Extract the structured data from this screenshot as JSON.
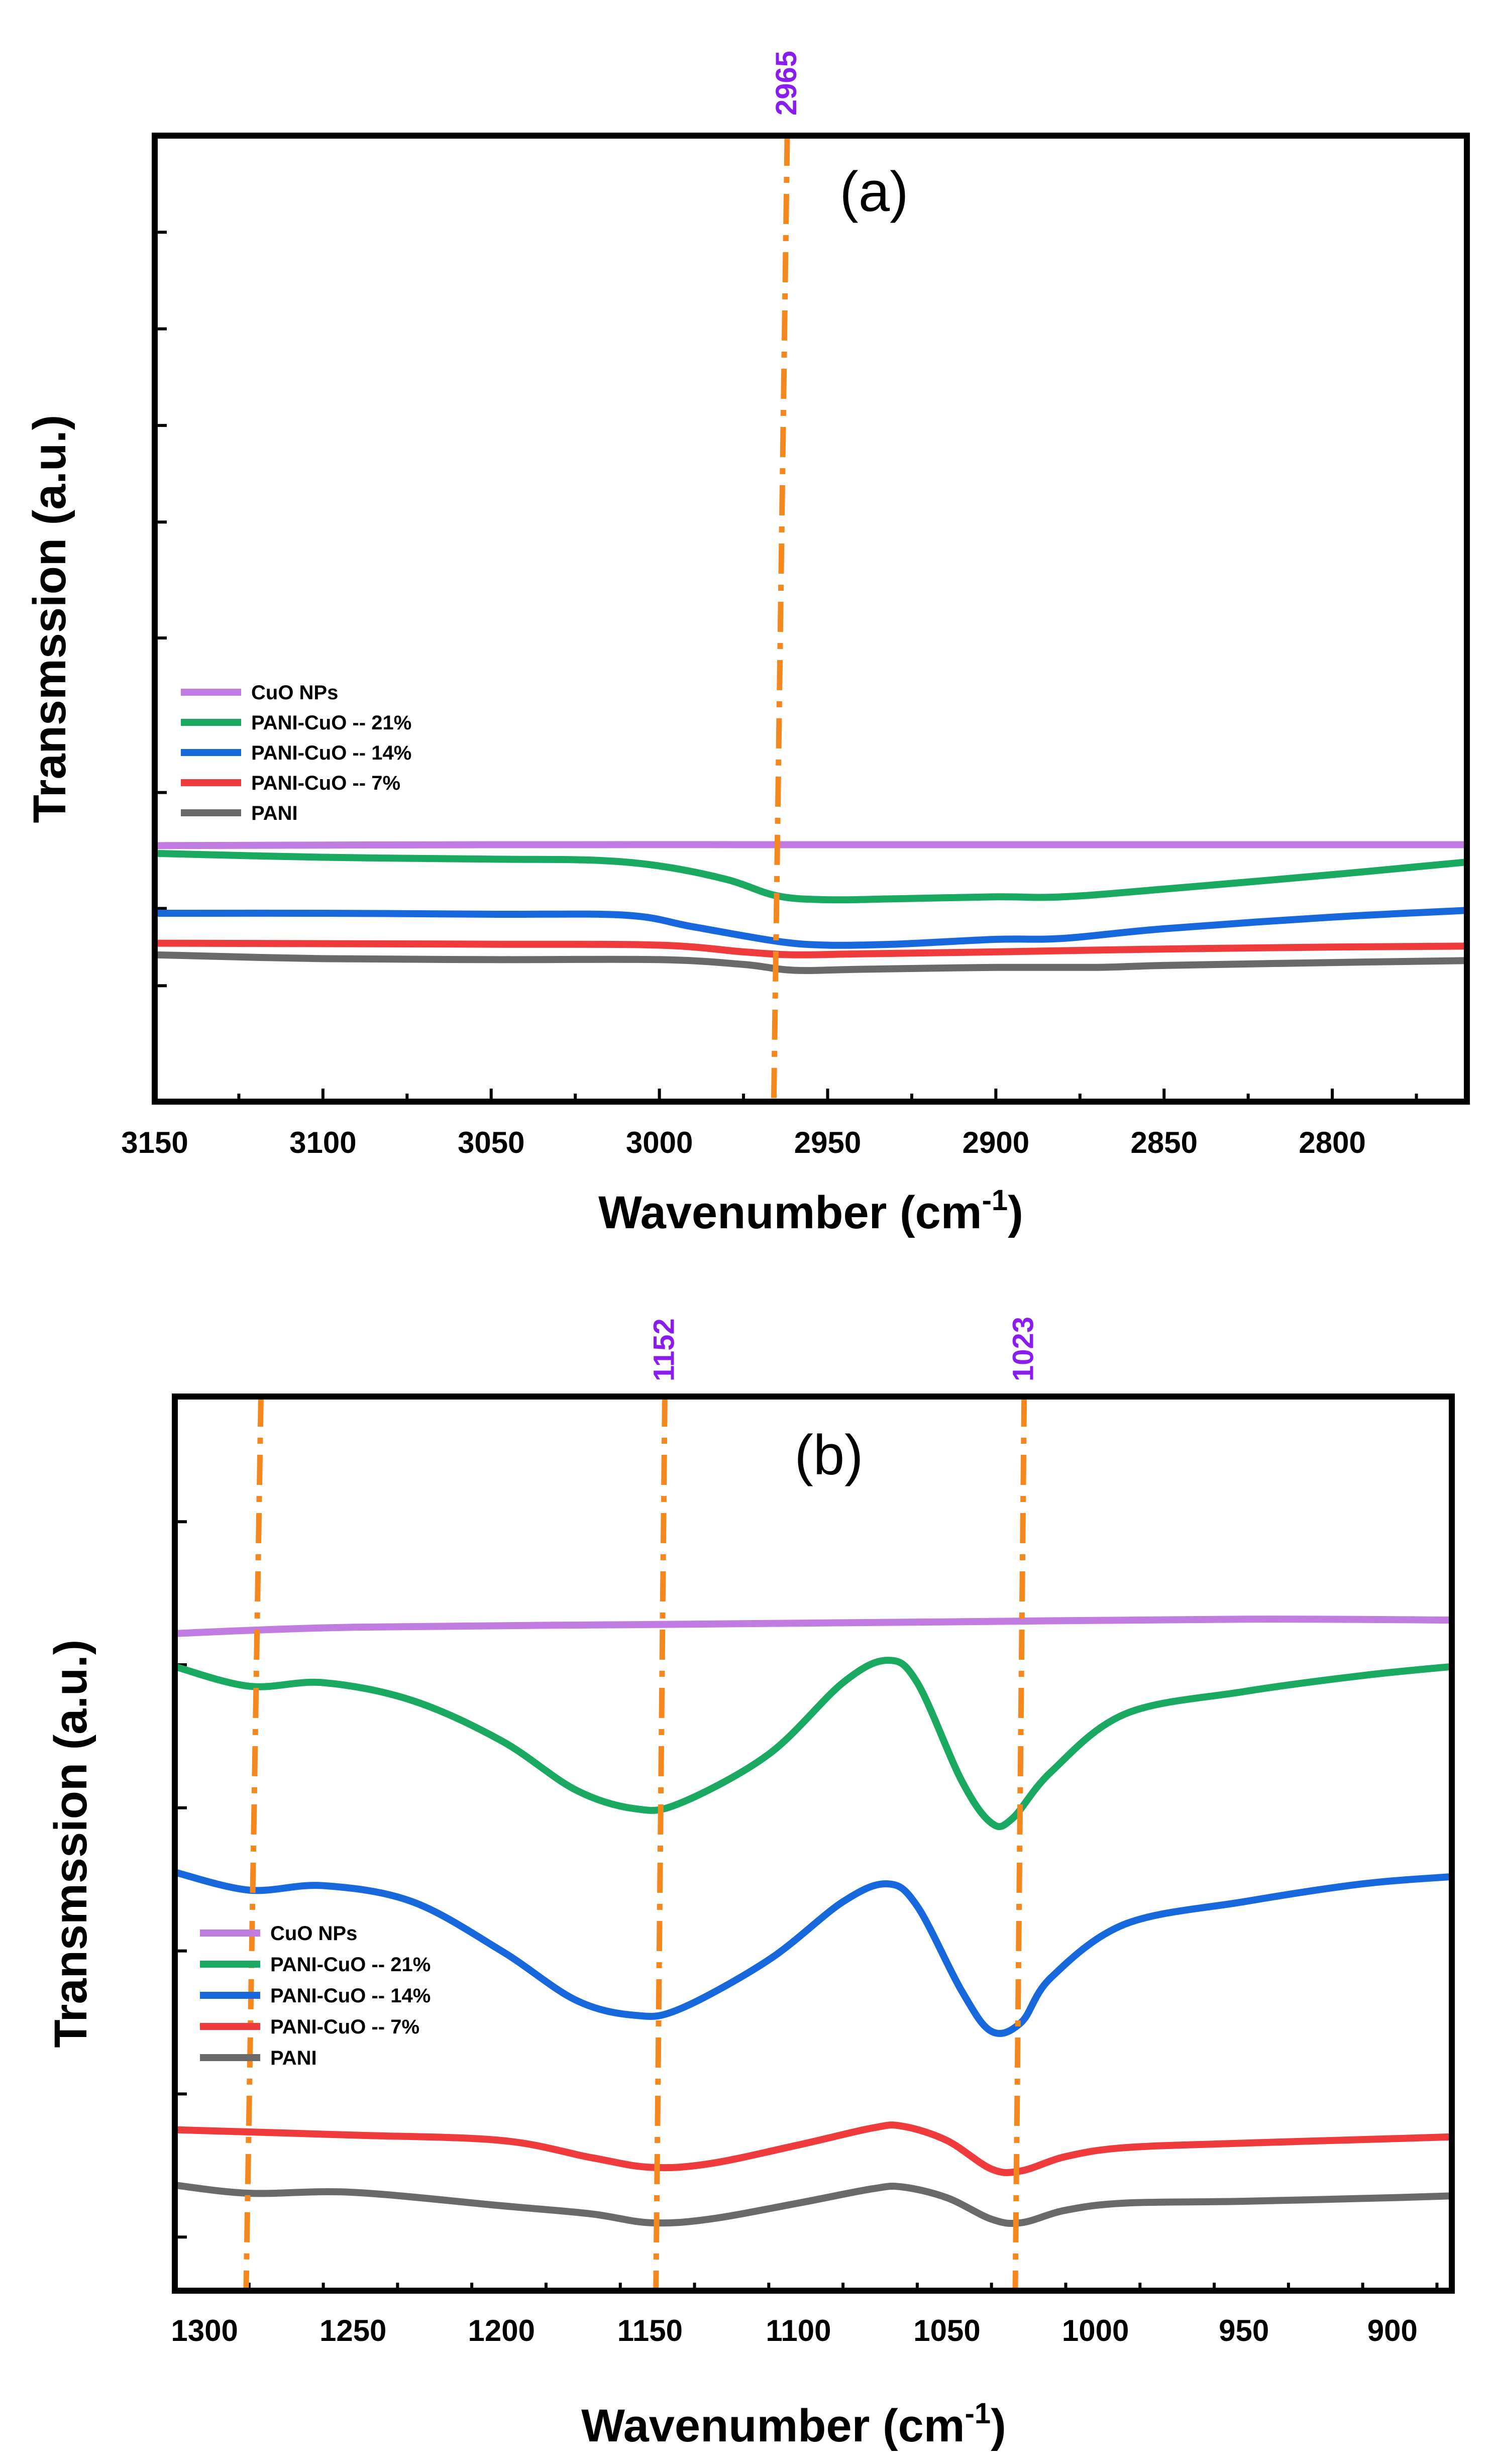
{
  "colors": {
    "cuo": "#c07ce0",
    "pani21": "#19a960",
    "pani14": "#1668dc",
    "pani7": "#ef3b3b",
    "pani": "#6a6a6a",
    "marker_line": "#f5871f",
    "marker_label": "#8b1cf0"
  },
  "chart_data": [
    {
      "type": "line",
      "panel_label": "(a)",
      "xlabel": "Wavenumber (cm",
      "xlabel_sup": "-1",
      "xlabel_close": ")",
      "ylabel": "Transmssion (a.u.)",
      "xlim": [
        3150,
        2760
      ],
      "ylim": [
        0,
        100
      ],
      "x_ticks": [
        3150,
        3100,
        3050,
        3000,
        2950,
        2900,
        2850,
        2800
      ],
      "x_tick_labels": [
        "3150",
        "3100",
        "3050",
        "3000",
        "2950",
        "2900",
        "2850",
        "2800"
      ],
      "y_tick_values": [
        12,
        20,
        32,
        48,
        60,
        70,
        80,
        90
      ],
      "legend": [
        "CuO NPs",
        "PANI-CuO -- 21%",
        "PANI-CuO -- 14%",
        "PANI-CuO -- 7%",
        "PANI"
      ],
      "series": [
        {
          "name": "CuO NPs",
          "color_key": "cuo",
          "x": [
            3150,
            3050,
            2950,
            2850,
            2760
          ],
          "y": [
            26.5,
            26.6,
            26.6,
            26.6,
            26.6
          ]
        },
        {
          "name": "PANI-CuO -- 21%",
          "color_key": "pani21",
          "x": [
            3150,
            3100,
            3050,
            3020,
            3000,
            2980,
            2965,
            2950,
            2930,
            2900,
            2880,
            2850,
            2800,
            2760
          ],
          "y": [
            25.7,
            25.3,
            25.1,
            25.0,
            24.4,
            23.0,
            21.3,
            20.9,
            21.0,
            21.2,
            21.2,
            22.0,
            23.5,
            24.8
          ]
        },
        {
          "name": "PANI-CuO -- 14%",
          "color_key": "pani14",
          "x": [
            3150,
            3100,
            3050,
            3010,
            2990,
            2965,
            2950,
            2930,
            2900,
            2880,
            2850,
            2800,
            2760
          ],
          "y": [
            19.5,
            19.5,
            19.4,
            19.3,
            18.1,
            16.6,
            16.2,
            16.3,
            16.8,
            16.9,
            17.9,
            19.1,
            19.8
          ]
        },
        {
          "name": "PANI-CuO -- 7%",
          "color_key": "pani7",
          "x": [
            3150,
            3050,
            3000,
            2975,
            2960,
            2940,
            2900,
            2850,
            2800,
            2760
          ],
          "y": [
            16.4,
            16.3,
            16.2,
            15.5,
            15.2,
            15.3,
            15.5,
            15.8,
            16.0,
            16.1
          ]
        },
        {
          "name": "PANI",
          "color_key": "pani",
          "x": [
            3150,
            3100,
            3050,
            3000,
            2975,
            2960,
            2940,
            2900,
            2870,
            2850,
            2800,
            2760
          ],
          "y": [
            15.2,
            14.8,
            14.7,
            14.7,
            14.2,
            13.6,
            13.7,
            13.9,
            13.9,
            14.1,
            14.4,
            14.6
          ]
        }
      ],
      "markers": [
        {
          "label": "2965",
          "x_top": 2962,
          "x_bottom": 2966
        }
      ]
    },
    {
      "type": "line",
      "panel_label": "(b)",
      "xlabel": "Wavenumber (cm",
      "xlabel_sup": "-1",
      "xlabel_close": ")",
      "ylabel": "Transmssion (a.u.)",
      "xlim": [
        1310,
        880
      ],
      "ylim": [
        0,
        100
      ],
      "x_ticks": [
        1300,
        1250,
        1200,
        1150,
        1100,
        1050,
        1000,
        950,
        900
      ],
      "x_tick_labels": [
        "1300",
        "1250",
        "1200",
        "1150",
        "1100",
        "1050",
        "1000",
        "950",
        "900"
      ],
      "y_tick_values": [
        6,
        22,
        38,
        54,
        70,
        86
      ],
      "legend": [
        "CuO NPs",
        "PANI-CuO -- 21%",
        "PANI-CuO -- 14%",
        "PANI-CuO -- 7%",
        "PANI"
      ],
      "series": [
        {
          "name": "CuO NPs",
          "color_key": "cuo",
          "x": [
            1310,
            1250,
            1150,
            1050,
            950,
            880
          ],
          "y": [
            73.5,
            74.2,
            74.5,
            74.8,
            75.1,
            75.0
          ]
        },
        {
          "name": "PANI-CuO -- 21%",
          "color_key": "pani21",
          "x": [
            1310,
            1285,
            1260,
            1230,
            1200,
            1175,
            1155,
            1140,
            1110,
            1085,
            1070,
            1060,
            1045,
            1035,
            1028,
            1015,
            990,
            950,
            910,
            880
          ],
          "y": [
            69.8,
            67.6,
            68.0,
            66.0,
            61.5,
            56.0,
            53.9,
            54.5,
            60.0,
            68.0,
            70.5,
            68.0,
            57.0,
            52.3,
            52.8,
            58.0,
            64.5,
            67.0,
            68.8,
            69.8
          ]
        },
        {
          "name": "PANI-CuO -- 14%",
          "color_key": "pani14",
          "x": [
            1310,
            1285,
            1260,
            1230,
            1200,
            1175,
            1155,
            1140,
            1110,
            1085,
            1070,
            1060,
            1045,
            1035,
            1025,
            1015,
            990,
            950,
            910,
            880
          ],
          "y": [
            46.8,
            44.8,
            45.3,
            43.5,
            38.0,
            32.5,
            30.8,
            31.5,
            37.0,
            43.5,
            45.5,
            43.0,
            33.5,
            29.0,
            30.0,
            35.0,
            41.0,
            43.5,
            45.5,
            46.3
          ]
        },
        {
          "name": "PANI-CuO -- 7%",
          "color_key": "pani7",
          "x": [
            1310,
            1250,
            1200,
            1170,
            1150,
            1130,
            1100,
            1075,
            1065,
            1050,
            1035,
            1025,
            1010,
            990,
            950,
            900,
            880
          ],
          "y": [
            18.0,
            17.4,
            16.8,
            14.9,
            13.8,
            14.2,
            16.3,
            18.2,
            18.4,
            16.8,
            13.6,
            13.4,
            15.0,
            16.0,
            16.5,
            17.0,
            17.2
          ]
        },
        {
          "name": "PANI",
          "color_key": "pani",
          "x": [
            1310,
            1285,
            1250,
            1200,
            1170,
            1150,
            1130,
            1100,
            1075,
            1065,
            1050,
            1035,
            1025,
            1010,
            990,
            950,
            900,
            880
          ],
          "y": [
            11.8,
            10.9,
            11.0,
            9.5,
            8.6,
            7.6,
            8.0,
            9.8,
            11.4,
            11.6,
            10.4,
            8.0,
            7.6,
            9.0,
            9.8,
            10.0,
            10.4,
            10.6
          ]
        }
      ],
      "markers": [
        {
          "label": "",
          "x_top": 1281,
          "x_bottom": 1286
        },
        {
          "label": "1152",
          "x_top": 1145,
          "x_bottom": 1148
        },
        {
          "label": "1023",
          "x_top": 1024,
          "x_bottom": 1027
        }
      ]
    }
  ]
}
